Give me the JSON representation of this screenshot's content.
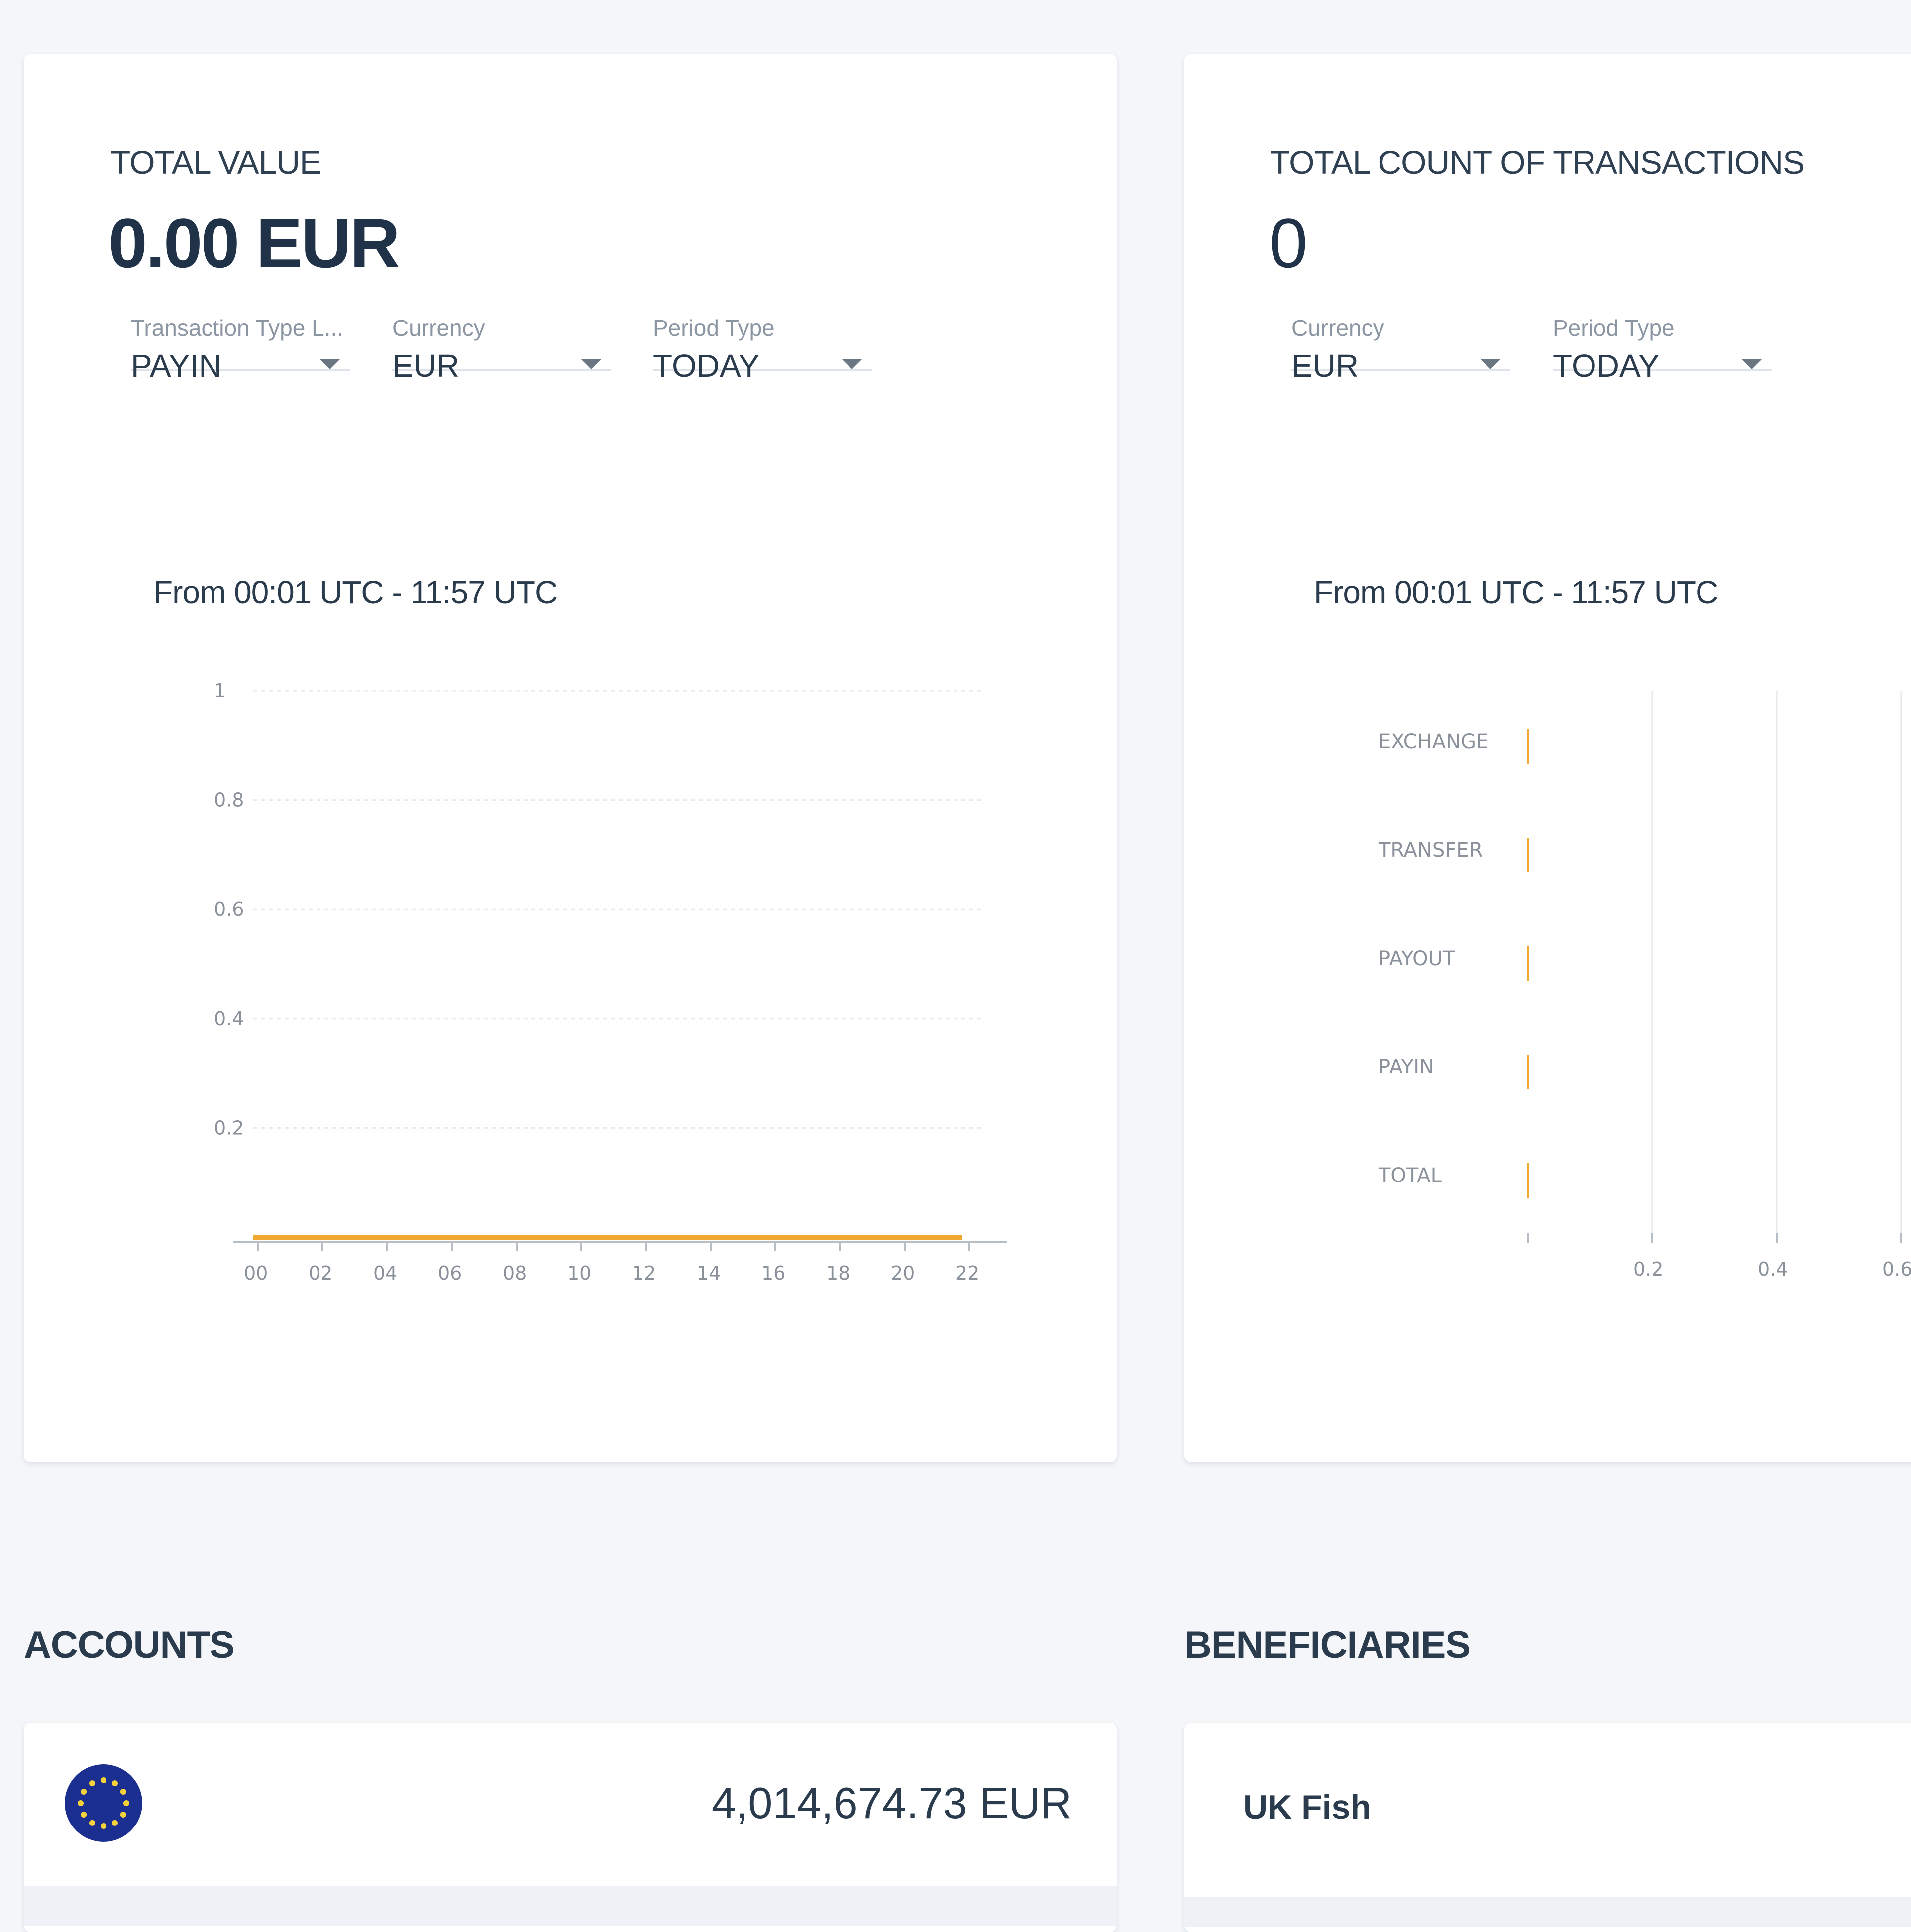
{
  "total_value_card": {
    "label": "TOTAL VALUE",
    "value": "0.00 EUR",
    "filters": [
      {
        "label": "Transaction Type L...",
        "value": "PAYIN"
      },
      {
        "label": "Currency",
        "value": "EUR"
      },
      {
        "label": "Period Type",
        "value": "TODAY"
      }
    ],
    "period_text": "From 00:01 UTC - 11:57 UTC"
  },
  "total_count_card": {
    "label": "TOTAL COUNT OF TRANSACTIONS",
    "value": "0",
    "filters": [
      {
        "label": "Currency",
        "value": "EUR"
      },
      {
        "label": "Period Type",
        "value": "TODAY"
      }
    ],
    "period_text": "From 00:01 UTC - 11:57 UTC"
  },
  "chart_data": [
    {
      "type": "line",
      "x": [
        "00",
        "02",
        "04",
        "06",
        "08",
        "10",
        "12",
        "14",
        "16",
        "18",
        "20",
        "22"
      ],
      "values": [
        0,
        0,
        0,
        0,
        0,
        0,
        0,
        0,
        0,
        0,
        0,
        0
      ],
      "y_ticks": [
        "0.2",
        "0.4",
        "0.6",
        "0.8",
        "1"
      ],
      "ylim": [
        0,
        1
      ],
      "grid": true,
      "color": "#f0a830"
    },
    {
      "type": "bar",
      "orientation": "horizontal",
      "categories": [
        "EXCHANGE",
        "TRANSFER",
        "PAYOUT",
        "PAYIN",
        "TOTAL"
      ],
      "values": [
        0,
        0,
        0,
        0,
        0
      ],
      "x_ticks": [
        "0.2",
        "0.4",
        "0.6"
      ],
      "xlim": [
        0,
        1
      ],
      "grid": true,
      "color": "#f0a830"
    }
  ],
  "accounts": {
    "title": "ACCOUNTS",
    "balance": "4,014,674.73 EUR",
    "flag": "eu-flag-icon"
  },
  "beneficiaries": {
    "title": "BENEFICIARIES",
    "first_name": "UK Fish"
  }
}
